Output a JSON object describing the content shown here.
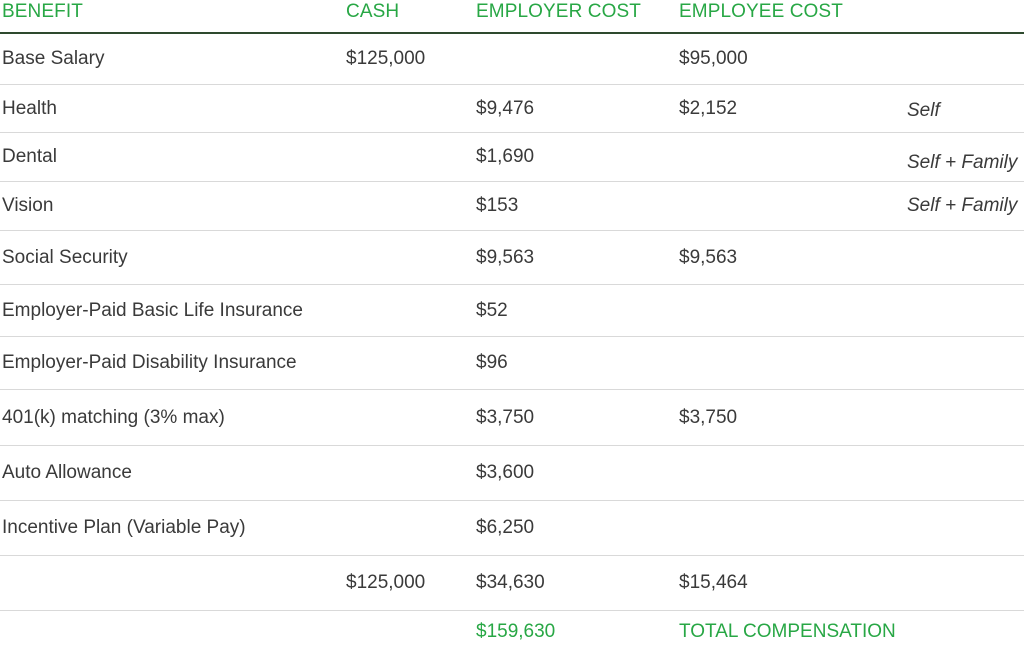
{
  "header": {
    "benefit": "BENEFIT",
    "cash": "CASH",
    "employer_cost": "EMPLOYER COST",
    "employee_cost": "EMPLOYEE COST"
  },
  "rows": [
    {
      "benefit": "Base Salary",
      "cash": "$125,000",
      "employer": "",
      "employee": "$95,000",
      "note": ""
    },
    {
      "benefit": "Health",
      "cash": "",
      "employer": "$9,476",
      "employee": "$2,152",
      "note": "Self"
    },
    {
      "benefit": "Dental",
      "cash": "",
      "employer": "$1,690",
      "employee": "",
      "note": "Self + Family"
    },
    {
      "benefit": "Vision",
      "cash": "",
      "employer": "$153",
      "employee": "",
      "note": "Self + Family"
    },
    {
      "benefit": "Social Security",
      "cash": "",
      "employer": "$9,563",
      "employee": "$9,563",
      "note": ""
    },
    {
      "benefit": "Employer-Paid Basic Life Insurance",
      "cash": "",
      "employer": "$52",
      "employee": "",
      "note": ""
    },
    {
      "benefit": "Employer-Paid Disability Insurance",
      "cash": "",
      "employer": "$96",
      "employee": "",
      "note": ""
    },
    {
      "benefit": "401(k) matching (3% max)",
      "cash": "",
      "employer": "$3,750",
      "employee": "$3,750",
      "note": ""
    },
    {
      "benefit": "Auto Allowance",
      "cash": "",
      "employer": "$3,600",
      "employee": "",
      "note": ""
    },
    {
      "benefit": "Incentive Plan (Variable Pay)",
      "cash": "",
      "employer": "$6,250",
      "employee": "",
      "note": ""
    }
  ],
  "totals": {
    "cash": "$125,000",
    "employer": "$34,630",
    "employee": "$15,464"
  },
  "grand_total": {
    "value": "$159,630",
    "label": "TOTAL COMPENSATION"
  },
  "colors": {
    "accent_green": "#28a745",
    "text": "#3a3a3a",
    "header_rule": "#2e4a2e",
    "row_rule": "#d9d9d9"
  }
}
